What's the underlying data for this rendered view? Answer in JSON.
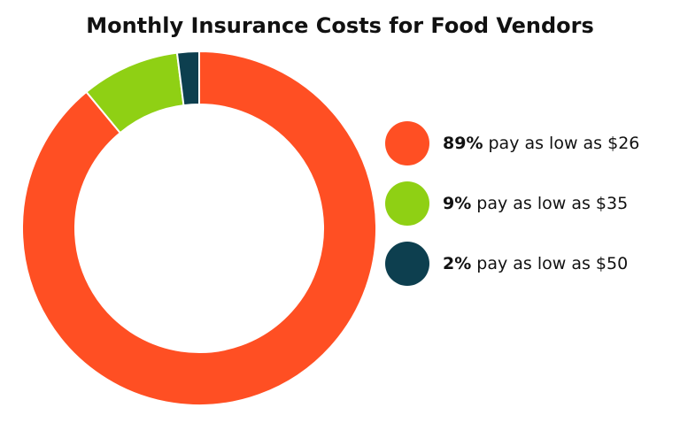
{
  "chart_data": {
    "type": "pie",
    "donut": true,
    "title": "Monthly Insurance Costs for Food Vendors",
    "categories": [
      "pay as low as $26",
      "pay as low as $35",
      "pay as low as $50"
    ],
    "values": [
      89,
      9,
      2
    ],
    "value_labels": [
      "89%",
      "9%",
      "2%"
    ],
    "colors": [
      "#ff4f23",
      "#8fd014",
      "#0d3f4f"
    ],
    "legend": "right"
  }
}
